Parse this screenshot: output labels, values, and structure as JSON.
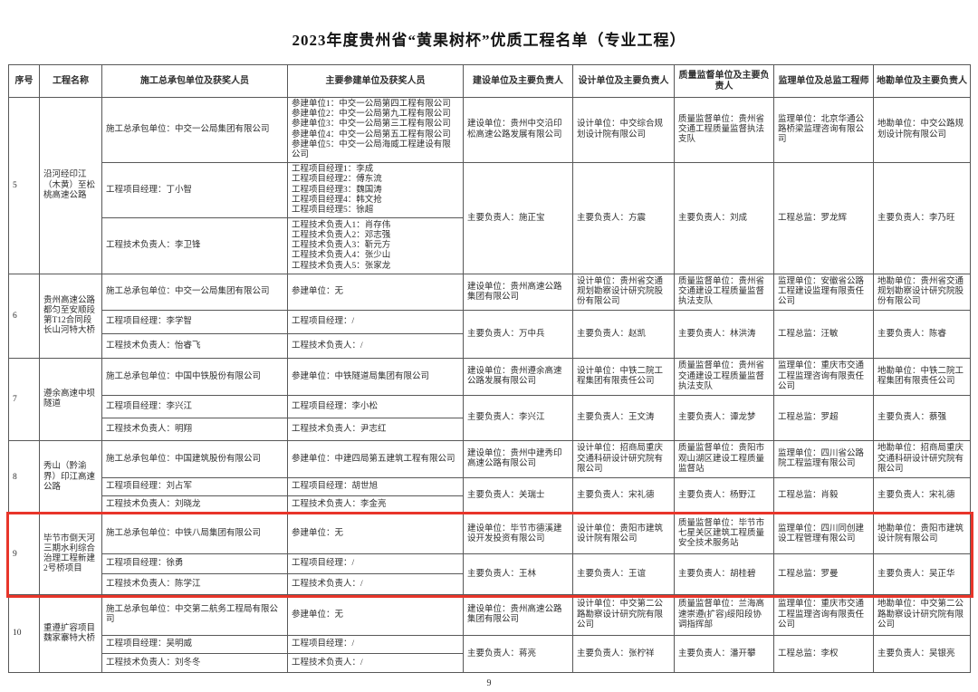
{
  "page": {
    "title": "2023年度贵州省“黄果树杯”优质工程名单（专业工程）",
    "page_number": "9",
    "highlight_color": "#e8352a"
  },
  "table": {
    "headers": [
      "序号",
      "工程名称",
      "施工总承包单位及获奖人员",
      "主要参建单位及获奖人员",
      "建设单位及主要负责人",
      "设计单位及主要负责人",
      "质量监督单位及主要负责人",
      "监理单位及总监工程师",
      "地勘单位及主要负责人"
    ],
    "rows": [
      {
        "no": "5",
        "name": "沿河经印江（木黄）至松桃高速公路",
        "contractor_unit": "施工总承包单位：中交一公局集团有限公司",
        "contractor_manager": "工程项目经理：丁小智",
        "contractor_tech": "工程技术负责人：李卫锋",
        "participant_unit": [
          "参建单位1：中交一公局第四工程有限公司",
          "参建单位2：中交一公局第九工程有限公司",
          "参建单位3：中交一公局第三工程有限公司",
          "参建单位4：中交一公局第五工程有限公司",
          "参建单位5：中交一公局海威工程建设有限公司"
        ],
        "participant_manager": [
          "工程项目经理1：李成",
          "工程项目经理2：傅东流",
          "工程项目经理3：魏国涛",
          "工程项目经理4：韩文抢",
          "工程项目经理5：徐超"
        ],
        "participant_tech": [
          "工程技术负责人1：肖存伟",
          "工程技术负责人2：邓志强",
          "工程技术负责人3：靳元方",
          "工程技术负责人4：张少山",
          "工程技术负责人5：张家龙"
        ],
        "build_unit": "建设单位：贵州中交沿印松高速公路发展有限公司",
        "build_person": "主要负责人：施正宝",
        "design_unit": "设计单位：中交综合规划设计院有限公司",
        "design_person": "主要负责人：方震",
        "quality_unit": "质量监督单位：贵州省交通工程质量监督执法支队",
        "quality_person": "主要负责人：刘成",
        "supervision_unit": "监理单位：北京华通公路桥梁监理咨询有限公司",
        "supervision_person": "工程总监：罗龙辉",
        "geo_unit": "地勘单位：中交公路规划设计院有限公司",
        "geo_person": "主要负责人：李乃旺"
      },
      {
        "no": "6",
        "name": "贵州高速公路都匀至安顺段第T12合同段长山河特大桥",
        "contractor_unit": "施工总承包单位：中交一公局集团有限公司",
        "contractor_manager": "工程项目经理：李学智",
        "contractor_tech": "工程技术负责人：怡睿飞",
        "participant_unit": "参建单位：无",
        "participant_manager": "工程项目经理：/",
        "participant_tech": "工程技术负责人：/",
        "build_unit": "建设单位：贵州高速公路集团有限公司",
        "build_person": "主要负责人：万中兵",
        "design_unit": "设计单位：贵州省交通规划勘察设计研究院股份有限公司",
        "design_person": "主要负责人：赵凯",
        "quality_unit": "质量监督单位：贵州省交通建设工程质量监督执法支队",
        "quality_person": "主要负责人：林洪涛",
        "supervision_unit": "监理单位：安徽省公路工程建设监理有限责任公司",
        "supervision_person": "工程总监：汪敏",
        "geo_unit": "地勘单位：贵州省交通规划勘察设计研究院股份有限公司",
        "geo_person": "主要负责人：陈睿"
      },
      {
        "no": "7",
        "name": "遵余高速中坝隧道",
        "contractor_unit": "施工总承包单位：中国中铁股份有限公司",
        "contractor_manager": "工程项目经理：李兴江",
        "contractor_tech": "工程技术负责人：明翔",
        "participant_unit": "参建单位：中铁隧道局集团有限公司",
        "participant_manager": "工程项目经理：李小松",
        "participant_tech": "工程技术负责人：尹志红",
        "build_unit": "建设单位：贵州遵余高速公路发展有限公司",
        "build_person": "主要负责人：李兴江",
        "design_unit": "设计单位：中铁二院工程集团有限责任公司",
        "design_person": "主要负责人：王文涛",
        "quality_unit": "质量监督单位：贵州省交通建设工程质量监督执法支队",
        "quality_person": "主要负责人：谭龙梦",
        "supervision_unit": "监理单位：重庆市交通工程监理咨询有限责任公司",
        "supervision_person": "工程总监：罗超",
        "geo_unit": "地勘单位：中铁二院工程集团有限责任公司",
        "geo_person": "主要负责人：蔡强"
      },
      {
        "no": "8",
        "name": "秀山（黔渝界）印江高速公路",
        "contractor_unit": "施工总承包单位：中国建筑股份有限公司",
        "contractor_manager": "工程项目经理：刘占军",
        "contractor_tech": "工程技术负责人：刘晓龙",
        "participant_unit": "参建单位：中建四局第五建筑工程有限公司",
        "participant_manager": "工程项目经理：胡世旭",
        "participant_tech": "工程技术负责人：李金亮",
        "build_unit": "建设单位：贵州中建秀印高速公路有限公司",
        "build_person": "主要负责人：关瑞士",
        "design_unit": "设计单位：招商局重庆交通科研设计研究院有限公司",
        "design_person": "主要负责人：宋礼德",
        "quality_unit": "质量监督单位：贵阳市观山湖区建设工程质量监督站",
        "quality_person": "主要负责人：杨野江",
        "supervision_unit": "监理单位：四川省公路院工程监理有限公司",
        "supervision_person": "工程总监：肖毅",
        "geo_unit": "地勘单位：招商局重庆交通科研设计研究院有限公司",
        "geo_person": "主要负责人：宋礼德"
      },
      {
        "no": "9",
        "name": "毕节市倒天河三期水利综合治理工程新建2号桥项目",
        "contractor_unit": "施工总承包单位：中铁八局集团有限公司",
        "contractor_manager": "工程项目经理：徐勇",
        "contractor_tech": "工程技术负责人：陈学江",
        "participant_unit": "参建单位：无",
        "participant_manager": "工程项目经理：/",
        "participant_tech": "工程技术负责人：/",
        "build_unit": "建设单位：毕节市德溪建设开发投资有限公司",
        "build_person": "主要负责人：王林",
        "design_unit": "设计单位：贵阳市建筑设计院有限公司",
        "design_person": "主要负责人：王谊",
        "quality_unit": "质量监督单位：毕节市七星关区建筑工程质量安全技术服务站",
        "quality_person": "主要负责人：胡桂碧",
        "supervision_unit": "监理单位：四川同创建设工程管理有限公司",
        "supervision_person": "工程总监：罗曼",
        "geo_unit": "地勘单位：贵阳市建筑设计院有限公司",
        "geo_person": "主要负责人：吴正华"
      },
      {
        "no": "10",
        "name": "重遵扩容项目魏家寨特大桥",
        "contractor_unit": "施工总承包单位：中交第二航务工程局有限公司",
        "contractor_manager": "工程项目经理：吴明威",
        "contractor_tech": "工程技术负责人：刘冬冬",
        "participant_unit": "参建单位：无",
        "participant_manager": "工程项目经理：/",
        "participant_tech": "工程技术负责人：/",
        "build_unit": "建设单位：贵州高速公路集团有限公司",
        "build_person": "主要负责人：蒋亮",
        "design_unit": "设计单位：中交第二公路勘察设计研究院有限公司",
        "design_person": "主要负责人：张柠祥",
        "quality_unit": "质量监督单位：兰海高速崇遵(扩容)绥阳段协调指挥部",
        "quality_person": "主要负责人：潘开攀",
        "supervision_unit": "监理单位：重庆市交通工程监理咨询有限责任公司",
        "supervision_person": "工程总监：李权",
        "geo_unit": "地勘单位：中交第二公路勘察设计研究院有限公司",
        "geo_person": "主要负责人：吴银亮"
      }
    ]
  }
}
